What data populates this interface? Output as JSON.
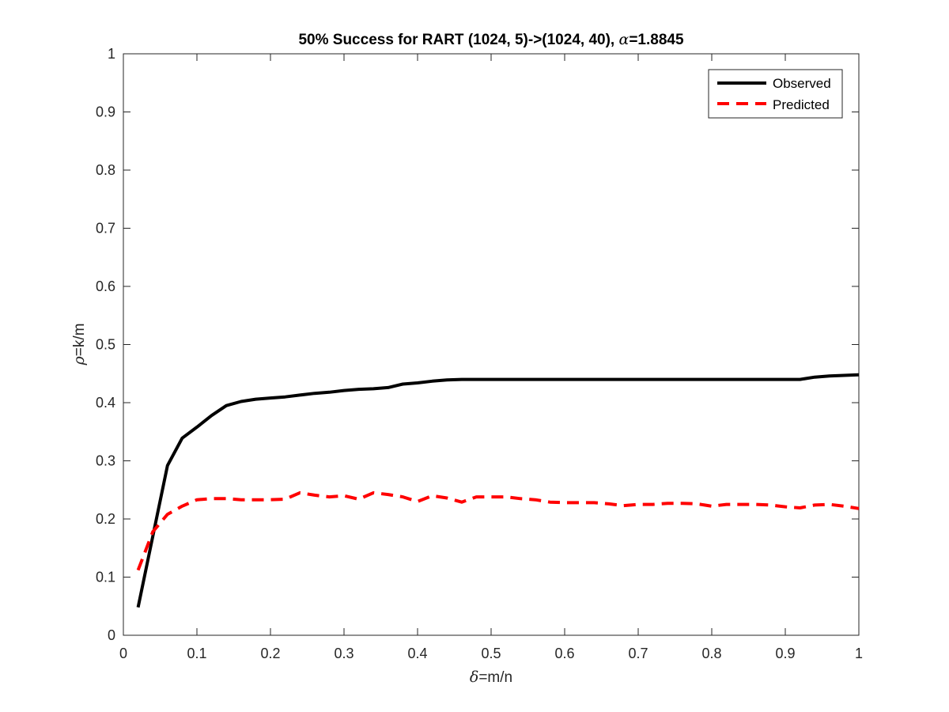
{
  "chart_data": {
    "type": "line",
    "title_prefix": "50% Success for RART (1024, 5)->(1024, 40), ",
    "title_symbol": "α",
    "title_suffix": "=1.8845",
    "xlabel_symbol": "δ",
    "xlabel_text": "=m/n",
    "ylabel_symbol": "ρ",
    "ylabel_text": "=k/m",
    "xlim": [
      0,
      1
    ],
    "ylim": [
      0,
      1
    ],
    "xticks": [
      "0",
      "0.1",
      "0.2",
      "0.3",
      "0.4",
      "0.5",
      "0.6",
      "0.7",
      "0.8",
      "0.9",
      "1"
    ],
    "yticks": [
      "0",
      "0.1",
      "0.2",
      "0.3",
      "0.4",
      "0.5",
      "0.6",
      "0.7",
      "0.8",
      "0.9",
      "1"
    ],
    "grid": false,
    "legend_position": "top-right",
    "series": [
      {
        "name": "Observed",
        "color": "#000000",
        "style": "solid",
        "x": [
          0.02,
          0.04,
          0.06,
          0.08,
          0.1,
          0.12,
          0.14,
          0.16,
          0.18,
          0.2,
          0.22,
          0.24,
          0.26,
          0.28,
          0.3,
          0.32,
          0.34,
          0.36,
          0.38,
          0.4,
          0.42,
          0.44,
          0.46,
          0.48,
          0.5,
          0.52,
          0.54,
          0.56,
          0.58,
          0.6,
          0.62,
          0.64,
          0.66,
          0.68,
          0.7,
          0.72,
          0.74,
          0.76,
          0.78,
          0.8,
          0.82,
          0.84,
          0.86,
          0.88,
          0.9,
          0.92,
          0.94,
          0.96,
          0.98,
          1.0
        ],
        "values": [
          0.048,
          0.17,
          0.292,
          0.339,
          0.358,
          0.378,
          0.395,
          0.402,
          0.406,
          0.408,
          0.41,
          0.413,
          0.416,
          0.418,
          0.421,
          0.423,
          0.424,
          0.426,
          0.432,
          0.434,
          0.437,
          0.439,
          0.44,
          0.44,
          0.44,
          0.44,
          0.44,
          0.44,
          0.44,
          0.44,
          0.44,
          0.44,
          0.44,
          0.44,
          0.44,
          0.44,
          0.44,
          0.44,
          0.44,
          0.44,
          0.44,
          0.44,
          0.44,
          0.44,
          0.44,
          0.44,
          0.444,
          0.446,
          0.447,
          0.448
        ]
      },
      {
        "name": "Predicted",
        "color": "#ff0000",
        "style": "dashed",
        "x": [
          0.02,
          0.04,
          0.06,
          0.08,
          0.1,
          0.12,
          0.14,
          0.16,
          0.18,
          0.2,
          0.22,
          0.24,
          0.26,
          0.28,
          0.3,
          0.32,
          0.34,
          0.36,
          0.38,
          0.4,
          0.42,
          0.44,
          0.46,
          0.48,
          0.5,
          0.52,
          0.54,
          0.56,
          0.58,
          0.6,
          0.62,
          0.64,
          0.66,
          0.68,
          0.7,
          0.72,
          0.74,
          0.76,
          0.78,
          0.8,
          0.82,
          0.84,
          0.86,
          0.88,
          0.9,
          0.92,
          0.94,
          0.96,
          0.98,
          1.0
        ],
        "values": [
          0.112,
          0.178,
          0.208,
          0.222,
          0.233,
          0.235,
          0.235,
          0.233,
          0.233,
          0.233,
          0.234,
          0.245,
          0.241,
          0.238,
          0.24,
          0.234,
          0.245,
          0.242,
          0.238,
          0.23,
          0.24,
          0.236,
          0.229,
          0.238,
          0.238,
          0.238,
          0.235,
          0.233,
          0.229,
          0.228,
          0.228,
          0.228,
          0.226,
          0.223,
          0.225,
          0.225,
          0.227,
          0.227,
          0.226,
          0.222,
          0.225,
          0.225,
          0.225,
          0.224,
          0.221,
          0.219,
          0.224,
          0.225,
          0.222,
          0.218
        ]
      }
    ]
  }
}
